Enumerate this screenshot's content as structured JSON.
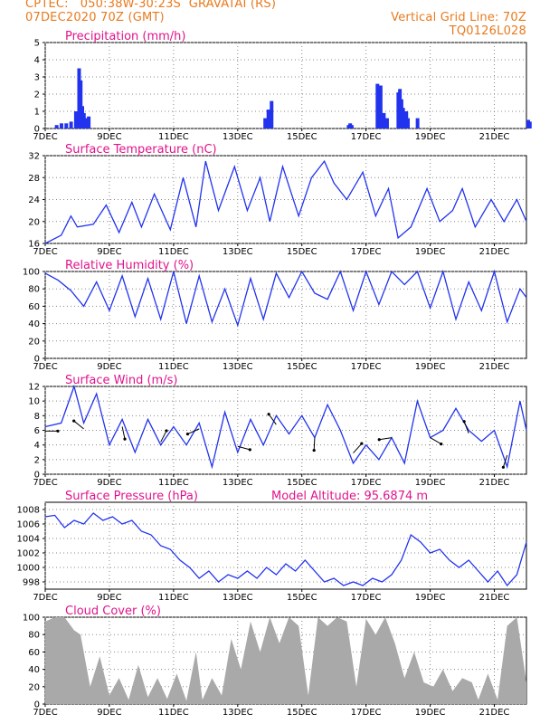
{
  "header": {
    "org": "CPTEC:",
    "coords": "050:38W-30:23S",
    "location": "GRAVATAI (RS)",
    "run": "07DEC2020 70Z (GMT)",
    "grid_line": "Vertical Grid Line: 70Z",
    "code": "TQ0126L028"
  },
  "colors": {
    "header": "#e87a1e",
    "title": "#e0148c",
    "line": "#2233ee",
    "bar": "#2233ee",
    "cloud": "#a9a9a9"
  },
  "x_labels": [
    "7DEC",
    "9DEC",
    "11DEC",
    "13DEC",
    "15DEC",
    "17DEC",
    "19DEC",
    "21DEC"
  ],
  "panels": [
    {
      "id": "precip",
      "title": "Precipitation (mm/h)",
      "ylim": [
        0,
        5
      ],
      "yticks": [
        0,
        1,
        2,
        3,
        4,
        5
      ]
    },
    {
      "id": "temp",
      "title": "Surface Temperature (nC)",
      "ylim": [
        16,
        32
      ],
      "yticks": [
        16,
        20,
        24,
        28,
        32
      ]
    },
    {
      "id": "rh",
      "title": "Relative Humidity (%)",
      "ylim": [
        0,
        100
      ],
      "yticks": [
        0,
        20,
        40,
        60,
        80,
        100
      ]
    },
    {
      "id": "wind",
      "title": "Surface Wind (m/s)",
      "ylim": [
        0,
        12
      ],
      "yticks": [
        0,
        2,
        4,
        6,
        8,
        10,
        12
      ]
    },
    {
      "id": "pres",
      "title": "Surface Pressure (hPa)",
      "extra": "Model Altitude: 95.6874 m",
      "ylim": [
        997,
        1009
      ],
      "yticks": [
        998,
        1000,
        1002,
        1004,
        1006,
        1008
      ]
    },
    {
      "id": "cloud",
      "title": "Cloud Cover (%)",
      "ylim": [
        0,
        100
      ],
      "yticks": [
        0,
        20,
        40,
        60,
        80,
        100
      ]
    }
  ],
  "chart_data": [
    {
      "type": "bar",
      "title": "Precipitation (mm/h)",
      "xlabel": "",
      "ylabel": "",
      "xlim": [
        0,
        15
      ],
      "ylim": [
        0,
        5
      ],
      "x": [
        0.3,
        0.45,
        0.6,
        0.75,
        0.9,
        1.0,
        1.05,
        1.1,
        1.15,
        1.2,
        1.3,
        6.8,
        6.9,
        7.0,
        9.4,
        9.45,
        9.5,
        10.3,
        10.4,
        10.5,
        10.6,
        10.95,
        11.0,
        11.05,
        11.1,
        11.15,
        11.2,
        11.25,
        11.55,
        15.0,
        15.05
      ],
      "values": [
        0.2,
        0.3,
        0.3,
        0.4,
        1.0,
        3.5,
        2.8,
        1.3,
        0.9,
        0.6,
        0.7,
        0.6,
        1.1,
        1.6,
        0.2,
        0.3,
        0.2,
        2.6,
        2.5,
        0.9,
        0.6,
        2.1,
        2.3,
        1.7,
        1.2,
        0.8,
        1.0,
        0.6,
        0.6,
        0.5,
        0.4
      ]
    },
    {
      "type": "line",
      "title": "Surface Temperature (nC)",
      "xlabel": "",
      "ylabel": "",
      "xlim": [
        0,
        15
      ],
      "ylim": [
        16,
        32
      ],
      "x": [
        0,
        0.5,
        0.8,
        1,
        1.5,
        1.9,
        2.3,
        2.7,
        3,
        3.4,
        3.9,
        4.3,
        4.7,
        5,
        5.4,
        5.9,
        6.3,
        6.7,
        7,
        7.4,
        7.9,
        8.3,
        8.7,
        9,
        9.4,
        9.9,
        10.3,
        10.7,
        11,
        11.4,
        11.9,
        12.3,
        12.7,
        13,
        13.4,
        13.9,
        14.3,
        14.7,
        15
      ],
      "values": [
        16,
        17.5,
        21,
        19,
        19.5,
        23,
        18,
        23.5,
        19,
        25,
        18.5,
        28,
        19,
        31,
        22,
        30,
        22,
        28,
        20,
        30,
        21,
        28,
        31,
        27,
        24,
        29,
        21,
        26,
        17,
        19,
        26,
        20,
        22,
        26,
        19,
        24,
        20,
        24,
        20
      ]
    },
    {
      "type": "line",
      "title": "Relative Humidity (%)",
      "xlabel": "",
      "ylabel": "",
      "xlim": [
        0,
        15
      ],
      "ylim": [
        0,
        100
      ],
      "x": [
        0,
        0.4,
        0.8,
        1.2,
        1.6,
        2.0,
        2.4,
        2.8,
        3.2,
        3.6,
        4.0,
        4.4,
        4.8,
        5.2,
        5.6,
        6.0,
        6.4,
        6.8,
        7.2,
        7.6,
        8.0,
        8.4,
        8.8,
        9.2,
        9.6,
        10.0,
        10.4,
        10.8,
        11.2,
        11.6,
        12.0,
        12.4,
        12.8,
        13.2,
        13.6,
        14.0,
        14.4,
        14.8,
        15
      ],
      "values": [
        98,
        90,
        78,
        60,
        88,
        55,
        95,
        48,
        92,
        45,
        100,
        40,
        95,
        42,
        80,
        38,
        92,
        45,
        98,
        70,
        100,
        75,
        68,
        100,
        55,
        100,
        62,
        100,
        85,
        100,
        58,
        100,
        45,
        88,
        55,
        100,
        42,
        80,
        70
      ]
    },
    {
      "type": "line",
      "title": "Surface Wind (m/s)",
      "xlabel": "",
      "ylabel": "",
      "xlim": [
        0,
        15
      ],
      "ylim": [
        0,
        12
      ],
      "x": [
        0,
        0.5,
        0.9,
        1.2,
        1.6,
        2.0,
        2.4,
        2.8,
        3.2,
        3.6,
        4.0,
        4.4,
        4.8,
        5.2,
        5.6,
        6.0,
        6.4,
        6.8,
        7.2,
        7.6,
        8.0,
        8.4,
        8.8,
        9.2,
        9.6,
        10.0,
        10.4,
        10.8,
        11.2,
        11.6,
        12.0,
        12.4,
        12.8,
        13.2,
        13.6,
        14.0,
        14.4,
        14.8,
        15
      ],
      "values": [
        6.5,
        7,
        12,
        7,
        11,
        4,
        7.5,
        3,
        7.5,
        4,
        6.5,
        4,
        7,
        1,
        8.5,
        3,
        7.5,
        4,
        8,
        5.5,
        8,
        5,
        9.5,
        6,
        1.5,
        4,
        2,
        5,
        1.5,
        10,
        5,
        6,
        9,
        6,
        4.5,
        6,
        1,
        10,
        6
      ]
    },
    {
      "type": "line",
      "title": "Surface Pressure (hPa)",
      "xlabel": "",
      "ylabel": "",
      "xlim": [
        0,
        15
      ],
      "ylim": [
        997,
        1009
      ],
      "x": [
        0,
        0.3,
        0.6,
        0.9,
        1.2,
        1.5,
        1.8,
        2.1,
        2.4,
        2.7,
        3.0,
        3.3,
        3.6,
        3.9,
        4.2,
        4.5,
        4.8,
        5.1,
        5.4,
        5.7,
        6.0,
        6.3,
        6.6,
        6.9,
        7.2,
        7.5,
        7.8,
        8.1,
        8.4,
        8.7,
        9.0,
        9.3,
        9.6,
        9.9,
        10.2,
        10.5,
        10.8,
        11.1,
        11.4,
        11.7,
        12.0,
        12.3,
        12.6,
        12.9,
        13.2,
        13.5,
        13.8,
        14.1,
        14.4,
        14.7,
        15
      ],
      "values": [
        1007,
        1007.2,
        1005.5,
        1006.5,
        1006,
        1007.5,
        1006.5,
        1007,
        1006,
        1006.5,
        1005,
        1004.5,
        1003,
        1002.5,
        1001,
        1000,
        998.5,
        999.5,
        998,
        999,
        998.5,
        999.5,
        998.5,
        1000,
        999,
        1000.5,
        999.5,
        1001,
        999.5,
        998,
        998.5,
        997.5,
        998,
        997.5,
        998.5,
        998,
        999,
        1001,
        1004.5,
        1003.5,
        1002,
        1002.5,
        1001,
        1000,
        1001,
        999.5,
        998,
        999.5,
        997.5,
        999,
        1003.5
      ]
    },
    {
      "type": "area",
      "title": "Cloud Cover (%)",
      "xlabel": "",
      "ylabel": "",
      "xlim": [
        0,
        15
      ],
      "ylim": [
        0,
        100
      ],
      "x": [
        0,
        0.3,
        0.6,
        0.9,
        1.1,
        1.4,
        1.7,
        2.0,
        2.3,
        2.6,
        2.9,
        3.2,
        3.5,
        3.8,
        4.1,
        4.4,
        4.7,
        4.9,
        5.2,
        5.5,
        5.8,
        6.1,
        6.4,
        6.7,
        7.0,
        7.3,
        7.6,
        7.9,
        8.2,
        8.5,
        8.8,
        9.1,
        9.4,
        9.7,
        10.0,
        10.3,
        10.6,
        10.9,
        11.2,
        11.5,
        11.8,
        12.1,
        12.4,
        12.7,
        13.0,
        13.3,
        13.5,
        13.8,
        14.1,
        14.4,
        14.7,
        15
      ],
      "values": [
        95,
        100,
        100,
        85,
        80,
        20,
        55,
        10,
        30,
        5,
        45,
        8,
        30,
        6,
        35,
        4,
        60,
        5,
        30,
        10,
        75,
        40,
        95,
        60,
        100,
        70,
        100,
        90,
        10,
        100,
        90,
        100,
        95,
        20,
        98,
        80,
        100,
        70,
        30,
        60,
        25,
        20,
        40,
        15,
        30,
        25,
        5,
        35,
        5,
        90,
        100,
        25
      ]
    }
  ]
}
